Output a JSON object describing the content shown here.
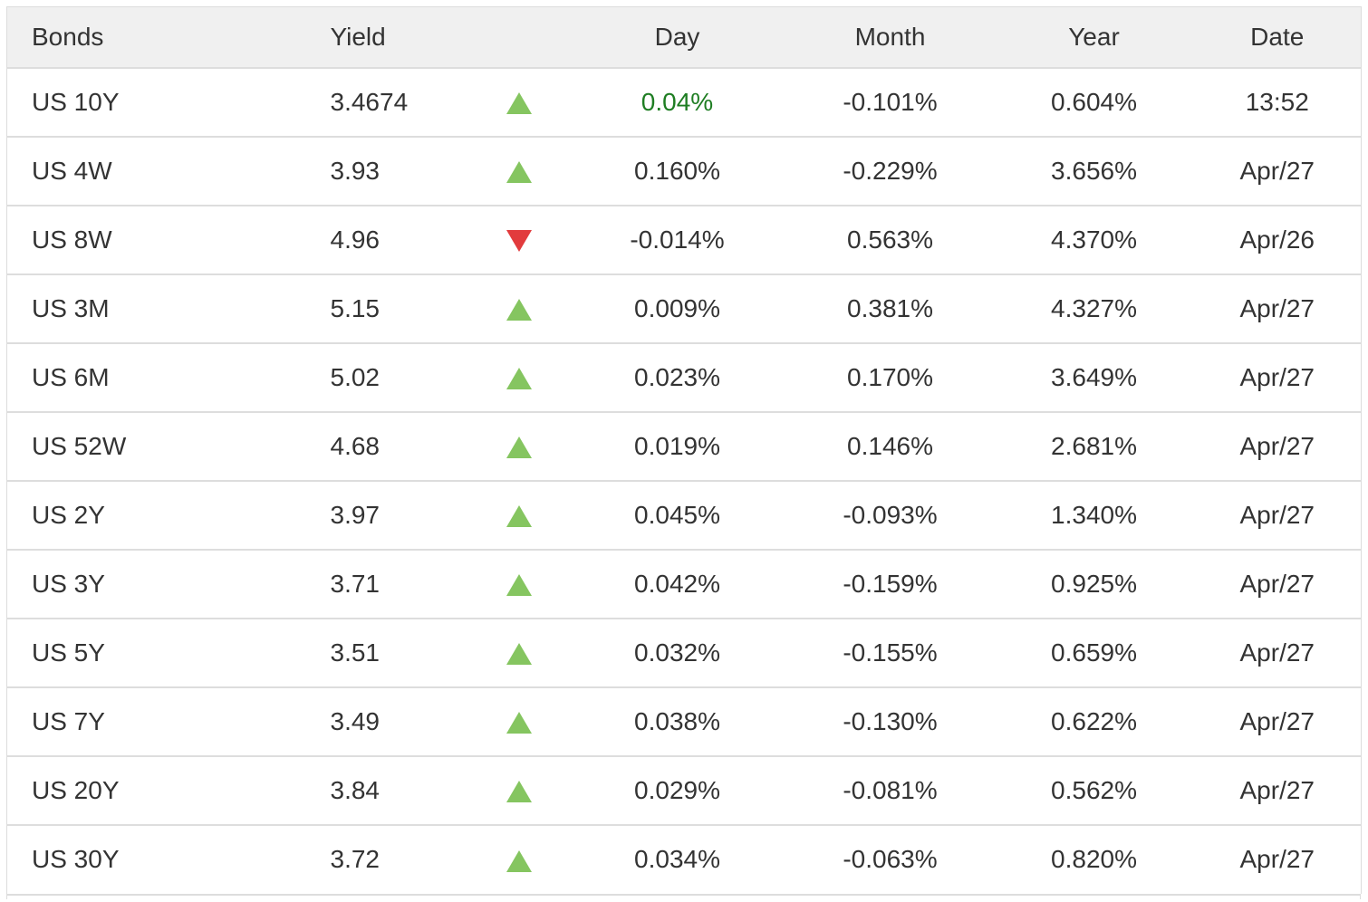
{
  "header": {
    "bonds": "Bonds",
    "yield": "Yield",
    "day": "Day",
    "month": "Month",
    "year": "Year",
    "date": "Date"
  },
  "colors": {
    "up_green": "#85c560",
    "down_red": "#e23b3d",
    "highlight_green": "#1e7d22",
    "text": "#333333",
    "header_bg": "#f0f0f0",
    "border": "#dddddd"
  },
  "rows": [
    {
      "bond": "US 10Y",
      "yield": "3.4674",
      "direction": "up",
      "day": "0.04%",
      "day_highlighted": true,
      "month": "-0.101%",
      "year": "0.604%",
      "date": "13:52"
    },
    {
      "bond": "US 4W",
      "yield": "3.93",
      "direction": "up",
      "day": "0.160%",
      "day_highlighted": false,
      "month": "-0.229%",
      "year": "3.656%",
      "date": "Apr/27"
    },
    {
      "bond": "US 8W",
      "yield": "4.96",
      "direction": "down",
      "day": "-0.014%",
      "day_highlighted": false,
      "month": "0.563%",
      "year": "4.370%",
      "date": "Apr/26"
    },
    {
      "bond": "US 3M",
      "yield": "5.15",
      "direction": "up",
      "day": "0.009%",
      "day_highlighted": false,
      "month": "0.381%",
      "year": "4.327%",
      "date": "Apr/27"
    },
    {
      "bond": "US 6M",
      "yield": "5.02",
      "direction": "up",
      "day": "0.023%",
      "day_highlighted": false,
      "month": "0.170%",
      "year": "3.649%",
      "date": "Apr/27"
    },
    {
      "bond": "US 52W",
      "yield": "4.68",
      "direction": "up",
      "day": "0.019%",
      "day_highlighted": false,
      "month": "0.146%",
      "year": "2.681%",
      "date": "Apr/27"
    },
    {
      "bond": "US 2Y",
      "yield": "3.97",
      "direction": "up",
      "day": "0.045%",
      "day_highlighted": false,
      "month": "-0.093%",
      "year": "1.340%",
      "date": "Apr/27"
    },
    {
      "bond": "US 3Y",
      "yield": "3.71",
      "direction": "up",
      "day": "0.042%",
      "day_highlighted": false,
      "month": "-0.159%",
      "year": "0.925%",
      "date": "Apr/27"
    },
    {
      "bond": "US 5Y",
      "yield": "3.51",
      "direction": "up",
      "day": "0.032%",
      "day_highlighted": false,
      "month": "-0.155%",
      "year": "0.659%",
      "date": "Apr/27"
    },
    {
      "bond": "US 7Y",
      "yield": "3.49",
      "direction": "up",
      "day": "0.038%",
      "day_highlighted": false,
      "month": "-0.130%",
      "year": "0.622%",
      "date": "Apr/27"
    },
    {
      "bond": "US 20Y",
      "yield": "3.84",
      "direction": "up",
      "day": "0.029%",
      "day_highlighted": false,
      "month": "-0.081%",
      "year": "0.562%",
      "date": "Apr/27"
    },
    {
      "bond": "US 30Y",
      "yield": "3.72",
      "direction": "up",
      "day": "0.034%",
      "day_highlighted": false,
      "month": "-0.063%",
      "year": "0.820%",
      "date": "Apr/27"
    }
  ]
}
